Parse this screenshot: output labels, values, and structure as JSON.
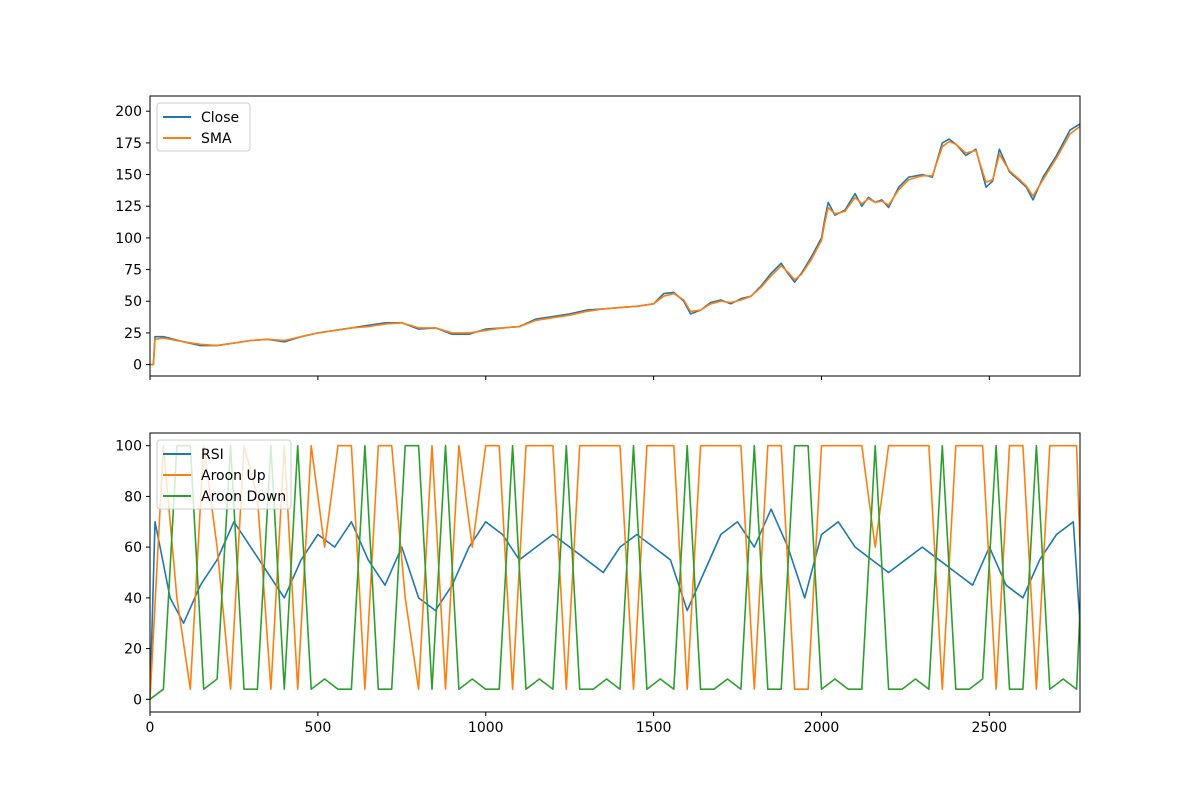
{
  "chart_data": [
    {
      "type": "line",
      "title": "",
      "xlabel": "",
      "ylabel": "",
      "xlim": [
        0,
        2770
      ],
      "ylim": [
        -9,
        212
      ],
      "grid": false,
      "legend": "top-left",
      "xticks": [
        0,
        500,
        1000,
        1500,
        2000,
        2500
      ],
      "xtick_labels_visible": false,
      "yticks": [
        0,
        25,
        50,
        75,
        100,
        125,
        150,
        175,
        200
      ],
      "series": [
        {
          "name": "Close",
          "color": "#1f77b4",
          "x": [
            0,
            10,
            15,
            40,
            100,
            150,
            200,
            250,
            300,
            350,
            400,
            450,
            500,
            550,
            600,
            650,
            700,
            750,
            800,
            850,
            900,
            950,
            1000,
            1050,
            1100,
            1150,
            1200,
            1250,
            1300,
            1350,
            1400,
            1450,
            1500,
            1530,
            1560,
            1590,
            1610,
            1640,
            1670,
            1700,
            1730,
            1760,
            1790,
            1820,
            1850,
            1880,
            1900,
            1920,
            1940,
            1970,
            2000,
            2010,
            2020,
            2040,
            2070,
            2100,
            2120,
            2140,
            2160,
            2180,
            2200,
            2230,
            2260,
            2300,
            2330,
            2360,
            2380,
            2400,
            2430,
            2460,
            2490,
            2510,
            2530,
            2560,
            2590,
            2610,
            2630,
            2660,
            2700,
            2740,
            2770
          ],
          "y": [
            0,
            0,
            22,
            22,
            18,
            15,
            15,
            17,
            19,
            20,
            18,
            22,
            25,
            27,
            29,
            31,
            33,
            33,
            28,
            29,
            24,
            24,
            28,
            29,
            30,
            36,
            38,
            40,
            43,
            44,
            45,
            46,
            48,
            56,
            57,
            50,
            40,
            43,
            49,
            51,
            48,
            52,
            54,
            62,
            72,
            80,
            72,
            65,
            72,
            85,
            100,
            115,
            128,
            118,
            122,
            135,
            125,
            132,
            128,
            130,
            124,
            140,
            148,
            150,
            148,
            175,
            178,
            174,
            165,
            170,
            140,
            145,
            170,
            152,
            145,
            140,
            130,
            148,
            165,
            185,
            190
          ]
        },
        {
          "name": "SMA",
          "color": "#ff7f0e",
          "x": [
            0,
            10,
            15,
            40,
            100,
            150,
            200,
            250,
            300,
            350,
            400,
            450,
            500,
            550,
            600,
            650,
            700,
            750,
            800,
            850,
            900,
            950,
            1000,
            1050,
            1100,
            1150,
            1200,
            1250,
            1300,
            1350,
            1400,
            1450,
            1500,
            1530,
            1560,
            1590,
            1610,
            1640,
            1670,
            1700,
            1730,
            1760,
            1790,
            1820,
            1850,
            1880,
            1900,
            1920,
            1940,
            1970,
            2000,
            2010,
            2020,
            2040,
            2070,
            2100,
            2120,
            2140,
            2160,
            2180,
            2200,
            2230,
            2260,
            2300,
            2330,
            2360,
            2380,
            2400,
            2430,
            2460,
            2490,
            2510,
            2530,
            2560,
            2590,
            2610,
            2630,
            2660,
            2700,
            2740,
            2770
          ],
          "y": [
            0,
            0,
            20,
            21,
            18,
            16,
            15,
            17,
            19,
            20,
            19,
            22,
            25,
            27,
            29,
            30,
            32,
            33,
            29,
            29,
            25,
            25,
            27,
            29,
            30,
            35,
            37,
            39,
            42,
            44,
            45,
            46,
            48,
            54,
            56,
            51,
            42,
            43,
            48,
            50,
            49,
            51,
            54,
            61,
            70,
            78,
            73,
            67,
            71,
            83,
            98,
            112,
            124,
            119,
            121,
            132,
            127,
            131,
            128,
            129,
            126,
            138,
            146,
            149,
            149,
            172,
            176,
            174,
            167,
            169,
            144,
            146,
            166,
            153,
            146,
            141,
            133,
            146,
            163,
            182,
            188
          ]
        }
      ]
    },
    {
      "type": "line",
      "title": "",
      "xlabel": "",
      "ylabel": "",
      "xlim": [
        0,
        2770
      ],
      "ylim": [
        -5,
        105
      ],
      "grid": false,
      "legend": "top-left",
      "xticks": [
        0,
        500,
        1000,
        1500,
        2000,
        2500
      ],
      "yticks": [
        0,
        20,
        40,
        60,
        80,
        100
      ],
      "series": [
        {
          "name": "RSI",
          "color": "#1f77b4",
          "x": [
            0,
            15,
            30,
            60,
            100,
            150,
            200,
            250,
            300,
            350,
            400,
            450,
            500,
            550,
            600,
            650,
            700,
            750,
            800,
            850,
            900,
            950,
            1000,
            1050,
            1100,
            1150,
            1200,
            1250,
            1300,
            1350,
            1400,
            1450,
            1500,
            1550,
            1600,
            1650,
            1700,
            1750,
            1800,
            1850,
            1900,
            1950,
            2000,
            2050,
            2100,
            2150,
            2200,
            2250,
            2300,
            2350,
            2400,
            2450,
            2500,
            2550,
            2600,
            2650,
            2700,
            2750,
            2770
          ],
          "y": [
            0,
            70,
            60,
            40,
            30,
            45,
            55,
            70,
            60,
            50,
            40,
            55,
            65,
            60,
            70,
            55,
            45,
            60,
            40,
            35,
            45,
            60,
            70,
            65,
            55,
            60,
            65,
            60,
            55,
            50,
            60,
            65,
            60,
            55,
            35,
            50,
            65,
            70,
            60,
            75,
            60,
            40,
            65,
            70,
            60,
            55,
            50,
            55,
            60,
            55,
            50,
            45,
            60,
            45,
            40,
            55,
            65,
            70,
            30
          ]
        },
        {
          "name": "Aroon Up",
          "color": "#ff7f0e",
          "x": [
            0,
            40,
            80,
            120,
            160,
            200,
            240,
            280,
            320,
            360,
            400,
            440,
            480,
            520,
            560,
            600,
            640,
            680,
            720,
            760,
            800,
            840,
            880,
            920,
            960,
            1000,
            1040,
            1080,
            1120,
            1160,
            1200,
            1240,
            1280,
            1320,
            1360,
            1400,
            1440,
            1480,
            1520,
            1560,
            1600,
            1640,
            1680,
            1720,
            1760,
            1800,
            1840,
            1880,
            1920,
            1960,
            2000,
            2040,
            2080,
            2120,
            2160,
            2200,
            2240,
            2280,
            2320,
            2360,
            2400,
            2440,
            2480,
            2520,
            2560,
            2600,
            2640,
            2680,
            2720,
            2760,
            2770
          ],
          "y": [
            0,
            100,
            40,
            4,
            100,
            60,
            4,
            100,
            80,
            4,
            100,
            4,
            100,
            60,
            100,
            100,
            4,
            100,
            100,
            40,
            4,
            100,
            4,
            100,
            60,
            100,
            100,
            4,
            100,
            100,
            100,
            4,
            100,
            100,
            100,
            100,
            4,
            100,
            100,
            100,
            4,
            100,
            100,
            100,
            100,
            4,
            100,
            100,
            4,
            4,
            100,
            100,
            100,
            100,
            60,
            100,
            100,
            100,
            100,
            4,
            100,
            100,
            100,
            4,
            100,
            100,
            4,
            100,
            100,
            100,
            60
          ]
        },
        {
          "name": "Aroon Down",
          "color": "#2ca02c",
          "x": [
            0,
            40,
            80,
            120,
            160,
            200,
            240,
            280,
            320,
            360,
            400,
            440,
            480,
            520,
            560,
            600,
            640,
            680,
            720,
            760,
            800,
            840,
            880,
            920,
            960,
            1000,
            1040,
            1080,
            1120,
            1160,
            1200,
            1240,
            1280,
            1320,
            1360,
            1400,
            1440,
            1480,
            1520,
            1560,
            1600,
            1640,
            1680,
            1720,
            1760,
            1800,
            1840,
            1880,
            1920,
            1960,
            2000,
            2040,
            2080,
            2120,
            2160,
            2200,
            2240,
            2280,
            2320,
            2360,
            2400,
            2440,
            2480,
            2520,
            2560,
            2600,
            2640,
            2680,
            2720,
            2760,
            2770
          ],
          "y": [
            0,
            4,
            100,
            100,
            4,
            8,
            100,
            4,
            4,
            100,
            4,
            100,
            4,
            8,
            4,
            4,
            100,
            4,
            4,
            100,
            100,
            4,
            100,
            4,
            8,
            4,
            4,
            100,
            4,
            8,
            4,
            100,
            4,
            4,
            8,
            4,
            100,
            4,
            8,
            4,
            100,
            4,
            4,
            8,
            4,
            100,
            4,
            4,
            100,
            100,
            4,
            8,
            4,
            4,
            100,
            4,
            4,
            8,
            4,
            100,
            4,
            4,
            8,
            100,
            4,
            4,
            100,
            4,
            8,
            4,
            35
          ]
        }
      ]
    }
  ]
}
